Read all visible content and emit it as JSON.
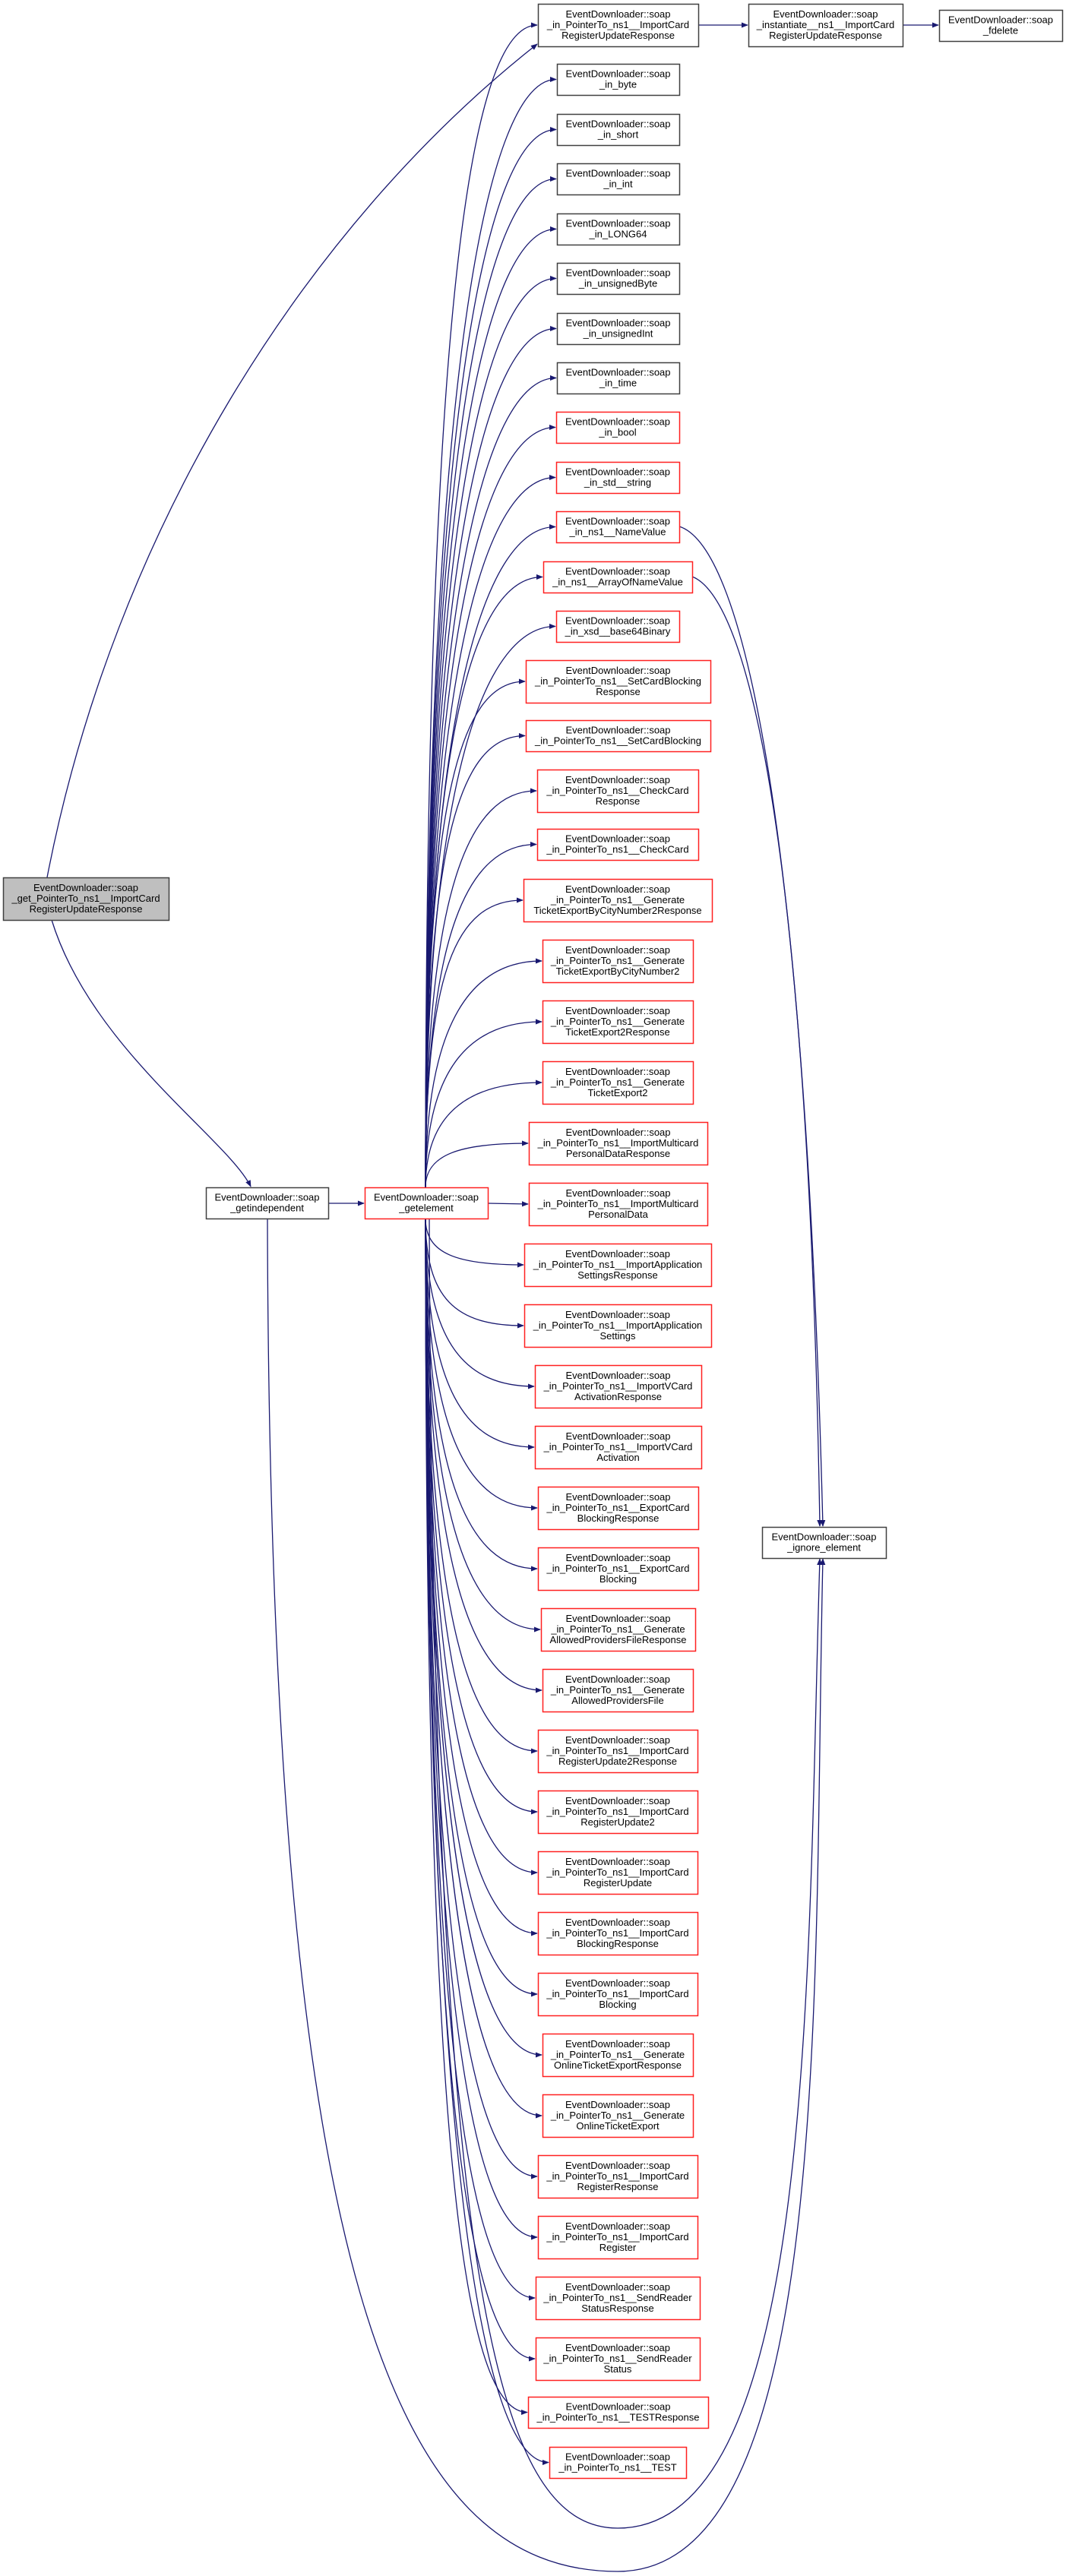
{
  "colors": {
    "edge": "#191970",
    "black_border": "#404040",
    "red_border": "#ff2020",
    "root_fill": "#bfbfbf"
  },
  "root": {
    "lines": [
      "EventDownloader::soap",
      "_get_PointerTo_ns1__ImportCard",
      "RegisterUpdateResponse"
    ],
    "status": "root"
  },
  "getindependent": {
    "lines": [
      "EventDownloader::soap",
      "_getindependent"
    ],
    "status": "black"
  },
  "getelement": {
    "lines": [
      "EventDownloader::soap",
      "_getelement"
    ],
    "status": "red"
  },
  "ignore_element": {
    "lines": [
      "EventDownloader::soap",
      "_ignore_element"
    ],
    "status": "black"
  },
  "instantiate": {
    "lines": [
      "EventDownloader::soap",
      "_instantiate__ns1__ImportCard",
      "RegisterUpdateResponse"
    ],
    "status": "black"
  },
  "fdelete": {
    "lines": [
      "EventDownloader::soap",
      "_fdelete"
    ],
    "status": "black"
  },
  "callees": [
    {
      "lines": [
        "EventDownloader::soap",
        "_in_PointerTo_ns1__ImportCard",
        "RegisterUpdateResponse"
      ],
      "status": "black"
    },
    {
      "lines": [
        "EventDownloader::soap",
        "_in_byte"
      ],
      "status": "black"
    },
    {
      "lines": [
        "EventDownloader::soap",
        "_in_short"
      ],
      "status": "black"
    },
    {
      "lines": [
        "EventDownloader::soap",
        "_in_int"
      ],
      "status": "black"
    },
    {
      "lines": [
        "EventDownloader::soap",
        "_in_LONG64"
      ],
      "status": "black"
    },
    {
      "lines": [
        "EventDownloader::soap",
        "_in_unsignedByte"
      ],
      "status": "black"
    },
    {
      "lines": [
        "EventDownloader::soap",
        "_in_unsignedInt"
      ],
      "status": "black"
    },
    {
      "lines": [
        "EventDownloader::soap",
        "_in_time"
      ],
      "status": "black"
    },
    {
      "lines": [
        "EventDownloader::soap",
        "_in_bool"
      ],
      "status": "red"
    },
    {
      "lines": [
        "EventDownloader::soap",
        "_in_std__string"
      ],
      "status": "red"
    },
    {
      "lines": [
        "EventDownloader::soap",
        "_in_ns1__NameValue"
      ],
      "status": "red"
    },
    {
      "lines": [
        "EventDownloader::soap",
        "_in_ns1__ArrayOfNameValue"
      ],
      "status": "red"
    },
    {
      "lines": [
        "EventDownloader::soap",
        "_in_xsd__base64Binary"
      ],
      "status": "red"
    },
    {
      "lines": [
        "EventDownloader::soap",
        "_in_PointerTo_ns1__SetCardBlocking",
        "Response"
      ],
      "status": "red"
    },
    {
      "lines": [
        "EventDownloader::soap",
        "_in_PointerTo_ns1__SetCardBlocking"
      ],
      "status": "red"
    },
    {
      "lines": [
        "EventDownloader::soap",
        "_in_PointerTo_ns1__CheckCard",
        "Response"
      ],
      "status": "red"
    },
    {
      "lines": [
        "EventDownloader::soap",
        "_in_PointerTo_ns1__CheckCard"
      ],
      "status": "red"
    },
    {
      "lines": [
        "EventDownloader::soap",
        "_in_PointerTo_ns1__Generate",
        "TicketExportByCityNumber2Response"
      ],
      "status": "red"
    },
    {
      "lines": [
        "EventDownloader::soap",
        "_in_PointerTo_ns1__Generate",
        "TicketExportByCityNumber2"
      ],
      "status": "red"
    },
    {
      "lines": [
        "EventDownloader::soap",
        "_in_PointerTo_ns1__Generate",
        "TicketExport2Response"
      ],
      "status": "red"
    },
    {
      "lines": [
        "EventDownloader::soap",
        "_in_PointerTo_ns1__Generate",
        "TicketExport2"
      ],
      "status": "red"
    },
    {
      "lines": [
        "EventDownloader::soap",
        "_in_PointerTo_ns1__ImportMulticard",
        "PersonalDataResponse"
      ],
      "status": "red"
    },
    {
      "lines": [
        "EventDownloader::soap",
        "_in_PointerTo_ns1__ImportMulticard",
        "PersonalData"
      ],
      "status": "red"
    },
    {
      "lines": [
        "EventDownloader::soap",
        "_in_PointerTo_ns1__ImportApplication",
        "SettingsResponse"
      ],
      "status": "red"
    },
    {
      "lines": [
        "EventDownloader::soap",
        "_in_PointerTo_ns1__ImportApplication",
        "Settings"
      ],
      "status": "red"
    },
    {
      "lines": [
        "EventDownloader::soap",
        "_in_PointerTo_ns1__ImportVCard",
        "ActivationResponse"
      ],
      "status": "red"
    },
    {
      "lines": [
        "EventDownloader::soap",
        "_in_PointerTo_ns1__ImportVCard",
        "Activation"
      ],
      "status": "red"
    },
    {
      "lines": [
        "EventDownloader::soap",
        "_in_PointerTo_ns1__ExportCard",
        "BlockingResponse"
      ],
      "status": "red"
    },
    {
      "lines": [
        "EventDownloader::soap",
        "_in_PointerTo_ns1__ExportCard",
        "Blocking"
      ],
      "status": "red"
    },
    {
      "lines": [
        "EventDownloader::soap",
        "_in_PointerTo_ns1__Generate",
        "AllowedProvidersFileResponse"
      ],
      "status": "red"
    },
    {
      "lines": [
        "EventDownloader::soap",
        "_in_PointerTo_ns1__Generate",
        "AllowedProvidersFile"
      ],
      "status": "red"
    },
    {
      "lines": [
        "EventDownloader::soap",
        "_in_PointerTo_ns1__ImportCard",
        "RegisterUpdate2Response"
      ],
      "status": "red"
    },
    {
      "lines": [
        "EventDownloader::soap",
        "_in_PointerTo_ns1__ImportCard",
        "RegisterUpdate2"
      ],
      "status": "red"
    },
    {
      "lines": [
        "EventDownloader::soap",
        "_in_PointerTo_ns1__ImportCard",
        "RegisterUpdate"
      ],
      "status": "red"
    },
    {
      "lines": [
        "EventDownloader::soap",
        "_in_PointerTo_ns1__ImportCard",
        "BlockingResponse"
      ],
      "status": "red"
    },
    {
      "lines": [
        "EventDownloader::soap",
        "_in_PointerTo_ns1__ImportCard",
        "Blocking"
      ],
      "status": "red"
    },
    {
      "lines": [
        "EventDownloader::soap",
        "_in_PointerTo_ns1__Generate",
        "OnlineTicketExportResponse"
      ],
      "status": "red"
    },
    {
      "lines": [
        "EventDownloader::soap",
        "_in_PointerTo_ns1__Generate",
        "OnlineTicketExport"
      ],
      "status": "red"
    },
    {
      "lines": [
        "EventDownloader::soap",
        "_in_PointerTo_ns1__ImportCard",
        "RegisterResponse"
      ],
      "status": "red"
    },
    {
      "lines": [
        "EventDownloader::soap",
        "_in_PointerTo_ns1__ImportCard",
        "Register"
      ],
      "status": "red"
    },
    {
      "lines": [
        "EventDownloader::soap",
        "_in_PointerTo_ns1__SendReader",
        "StatusResponse"
      ],
      "status": "red"
    },
    {
      "lines": [
        "EventDownloader::soap",
        "_in_PointerTo_ns1__SendReader",
        "Status"
      ],
      "status": "red"
    },
    {
      "lines": [
        "EventDownloader::soap",
        "_in_PointerTo_ns1__TESTResponse"
      ],
      "status": "red"
    },
    {
      "lines": [
        "EventDownloader::soap",
        "_in_PointerTo_ns1__TEST"
      ],
      "status": "red"
    }
  ]
}
